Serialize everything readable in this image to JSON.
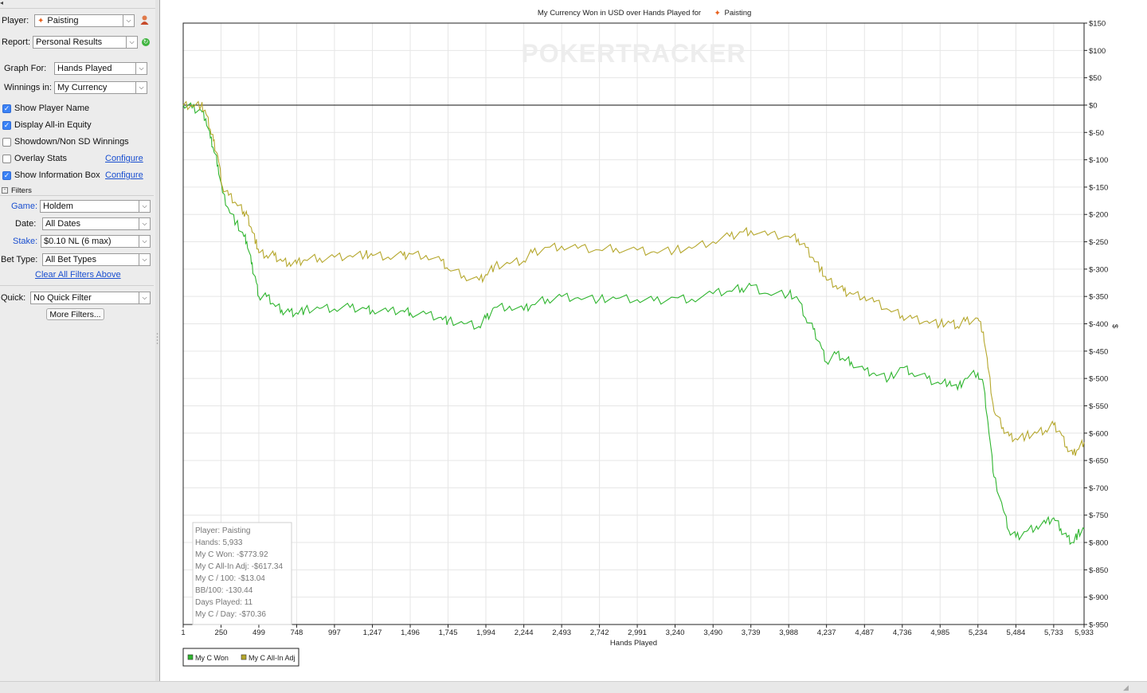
{
  "sidebar": {
    "player_label": "Player:",
    "player_value": "Paisting",
    "report_label": "Report:",
    "report_value": "Personal Results",
    "graph_for_label": "Graph For:",
    "graph_for_value": "Hands Played",
    "winnings_in_label": "Winnings in:",
    "winnings_in_value": "My Currency",
    "checkboxes": [
      {
        "label": "Show Player Name",
        "checked": true
      },
      {
        "label": "Display All-in Equity",
        "checked": true
      },
      {
        "label": "Showdown/Non SD Winnings",
        "checked": false
      },
      {
        "label": "Overlay Stats",
        "checked": false
      },
      {
        "label": "Show Information Box",
        "checked": true
      }
    ],
    "configure_label": "Configure",
    "filters_title": "Filters",
    "game_label": "Game:",
    "game_value": "Holdem",
    "date_label": "Date:",
    "date_value": "All Dates",
    "stake_label": "Stake:",
    "stake_value": "$0.10 NL (6 max)",
    "bet_type_label": "Bet Type:",
    "bet_type_value": "All Bet Types",
    "clear_filters_label": "Clear All Filters Above",
    "quick_label": "Quick:",
    "quick_value": "No Quick Filter",
    "more_filters_label": "More Filters..."
  },
  "chart_data": {
    "type": "line",
    "title": "My Currency Won in USD over Hands Played for",
    "title_player": "Paisting",
    "watermark": "POKERTRACKER",
    "xlabel": "Hands Played",
    "ylabel": "$",
    "xlim": [
      1,
      5933
    ],
    "ylim": [
      -950,
      150
    ],
    "x_ticks": [
      "1",
      "250",
      "499",
      "748",
      "997",
      "1,247",
      "1,496",
      "1,745",
      "1,994",
      "2,244",
      "2,493",
      "2,742",
      "2,991",
      "3,240",
      "3,490",
      "3,739",
      "3,988",
      "4,237",
      "4,487",
      "4,736",
      "4,985",
      "5,234",
      "5,484",
      "5,733",
      "5,933"
    ],
    "x_tick_values": [
      1,
      250,
      499,
      748,
      997,
      1247,
      1496,
      1745,
      1994,
      2244,
      2493,
      2742,
      2991,
      3240,
      3490,
      3739,
      3988,
      4237,
      4487,
      4736,
      4985,
      5234,
      5484,
      5733,
      5933
    ],
    "y_ticks": [
      "$150",
      "$100",
      "$50",
      "$0",
      "$-50",
      "$-100",
      "$-150",
      "$-200",
      "$-250",
      "$-300",
      "$-350",
      "$-400",
      "$-450",
      "$-500",
      "$-550",
      "$-600",
      "$-650",
      "$-700",
      "$-750",
      "$-800",
      "$-850",
      "$-900",
      "$-950"
    ],
    "y_tick_values": [
      150,
      100,
      50,
      0,
      -50,
      -100,
      -150,
      -200,
      -250,
      -300,
      -350,
      -400,
      -450,
      -500,
      -550,
      -600,
      -650,
      -700,
      -750,
      -800,
      -850,
      -900,
      -950
    ],
    "grid": true,
    "legend_position": "bottom-left",
    "series": [
      {
        "name": "My C Won",
        "color": "#2fb52f",
        "x": [
          1,
          60,
          120,
          150,
          180,
          200,
          230,
          260,
          300,
          350,
          400,
          420,
          450,
          480,
          499,
          550,
          600,
          650,
          700,
          748,
          800,
          900,
          997,
          1100,
          1200,
          1247,
          1350,
          1450,
          1496,
          1600,
          1700,
          1745,
          1850,
          1950,
          1994,
          2050,
          2150,
          2244,
          2300,
          2400,
          2493,
          2600,
          2742,
          2850,
          2991,
          3100,
          3240,
          3350,
          3490,
          3600,
          3680,
          3739,
          3850,
          3988,
          4050,
          4100,
          4150,
          4200,
          4237,
          4300,
          4350,
          4400,
          4487,
          4550,
          4650,
          4736,
          4800,
          4900,
          4985,
          5050,
          5100,
          5150,
          5234,
          5270,
          5300,
          5340,
          5400,
          5440,
          5484,
          5550,
          5620,
          5680,
          5733,
          5780,
          5820,
          5860,
          5890,
          5933
        ],
        "y": [
          0,
          -5,
          -10,
          -25,
          -60,
          -80,
          -110,
          -160,
          -190,
          -215,
          -240,
          -250,
          -290,
          -320,
          -350,
          -350,
          -365,
          -375,
          -378,
          -380,
          -375,
          -372,
          -373,
          -370,
          -372,
          -375,
          -378,
          -376,
          -380,
          -382,
          -388,
          -395,
          -400,
          -405,
          -390,
          -370,
          -368,
          -375,
          -365,
          -355,
          -350,
          -352,
          -355,
          -354,
          -356,
          -358,
          -352,
          -355,
          -345,
          -340,
          -335,
          -330,
          -345,
          -345,
          -355,
          -390,
          -410,
          -440,
          -470,
          -455,
          -465,
          -470,
          -485,
          -490,
          -500,
          -480,
          -490,
          -500,
          -510,
          -505,
          -520,
          -500,
          -490,
          -510,
          -580,
          -680,
          -740,
          -780,
          -790,
          -780,
          -770,
          -765,
          -755,
          -775,
          -790,
          -800,
          -785,
          -775
        ]
      },
      {
        "name": "My C All-In Adj",
        "color": "#b5a72c",
        "x": [
          1,
          60,
          120,
          150,
          180,
          200,
          230,
          260,
          300,
          350,
          400,
          420,
          450,
          480,
          499,
          550,
          600,
          650,
          700,
          748,
          800,
          900,
          997,
          1100,
          1200,
          1247,
          1350,
          1450,
          1496,
          1600,
          1700,
          1745,
          1850,
          1950,
          1994,
          2050,
          2150,
          2244,
          2300,
          2400,
          2493,
          2600,
          2742,
          2850,
          2991,
          3100,
          3240,
          3350,
          3490,
          3600,
          3680,
          3739,
          3850,
          3988,
          4050,
          4100,
          4150,
          4200,
          4237,
          4300,
          4350,
          4400,
          4487,
          4550,
          4650,
          4736,
          4800,
          4900,
          4985,
          5050,
          5100,
          5150,
          5234,
          5270,
          5300,
          5340,
          5400,
          5440,
          5484,
          5550,
          5620,
          5680,
          5733,
          5780,
          5820,
          5860,
          5890,
          5933
        ],
        "y": [
          0,
          0,
          0,
          -15,
          -45,
          -65,
          -95,
          -150,
          -165,
          -180,
          -195,
          -200,
          -225,
          -250,
          -270,
          -275,
          -275,
          -285,
          -288,
          -290,
          -283,
          -280,
          -278,
          -275,
          -273,
          -275,
          -278,
          -275,
          -272,
          -275,
          -285,
          -300,
          -312,
          -320,
          -310,
          -295,
          -290,
          -285,
          -270,
          -260,
          -258,
          -262,
          -265,
          -262,
          -265,
          -268,
          -265,
          -262,
          -250,
          -240,
          -232,
          -230,
          -238,
          -240,
          -245,
          -260,
          -280,
          -300,
          -320,
          -330,
          -340,
          -345,
          -350,
          -360,
          -375,
          -385,
          -390,
          -395,
          -400,
          -398,
          -405,
          -395,
          -390,
          -415,
          -480,
          -560,
          -590,
          -605,
          -610,
          -605,
          -600,
          -595,
          -585,
          -600,
          -625,
          -640,
          -630,
          -617
        ]
      }
    ],
    "info_box": [
      "Player: Paisting",
      "Hands: 5,933",
      "My C Won: -$773.92",
      "My C All-In Adj: -$617.34",
      "My C / 100: -$13.04",
      "BB/100: -130.44",
      "Days Played: 11",
      "My C / Day: -$70.36"
    ]
  }
}
